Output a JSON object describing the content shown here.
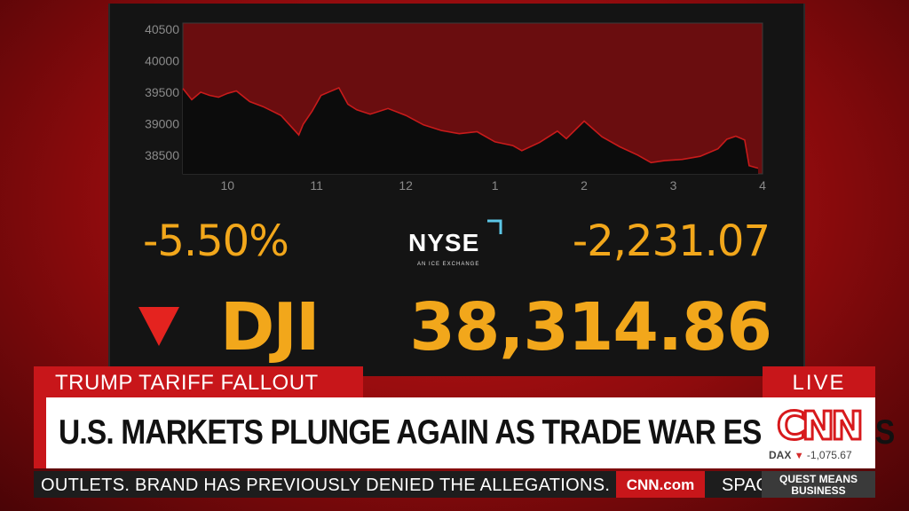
{
  "market": {
    "percent_change": "-5.50%",
    "point_change": "-2,231.07",
    "symbol": "DJI",
    "value": "38,314.86",
    "direction": "down",
    "exchange": {
      "name": "NYSE",
      "tagline": "AN ICE EXCHANGE"
    }
  },
  "chart_data": {
    "type": "area",
    "title": "",
    "xlabel": "",
    "ylabel": "",
    "x_ticks": [
      "10",
      "11",
      "12",
      "1",
      "2",
      "3",
      "4"
    ],
    "y_ticks": [
      38500,
      39000,
      39500,
      40000,
      40500
    ],
    "ylim": [
      38200,
      40600
    ],
    "grid": false,
    "series": [
      {
        "x": [
          9.5,
          9.6,
          9.7,
          9.8,
          9.9,
          10.0,
          10.1,
          10.25,
          10.4,
          10.6,
          10.8,
          10.85,
          10.95,
          11.05,
          11.15,
          11.25,
          11.35,
          11.45,
          11.6,
          11.8,
          12.0,
          12.2,
          12.4,
          12.6,
          12.8,
          13.0,
          13.2,
          13.3,
          13.5,
          13.7,
          13.8,
          14.0,
          14.2,
          14.4,
          14.6,
          14.75,
          14.9,
          15.1,
          15.3,
          15.5,
          15.6,
          15.7,
          15.8,
          15.85,
          15.95
        ],
        "y": [
          39560,
          39380,
          39500,
          39450,
          39420,
          39480,
          39520,
          39350,
          39270,
          39130,
          38820,
          38990,
          39200,
          39450,
          39510,
          39570,
          39310,
          39220,
          39150,
          39240,
          39130,
          38980,
          38890,
          38840,
          38870,
          38710,
          38650,
          38570,
          38700,
          38880,
          38760,
          39040,
          38790,
          38630,
          38500,
          38380,
          38410,
          38430,
          38480,
          38600,
          38750,
          38800,
          38740,
          38330,
          38290
        ]
      }
    ],
    "colors": {
      "area_fill": "#6a0d0f",
      "line": "#c81b1b"
    }
  },
  "lower_third": {
    "topic": "TRUMP TARIFF FALLOUT",
    "live": "LIVE",
    "headline": "U.S. MARKETS PLUNGE AGAIN AS TRADE WAR ESCALATES",
    "logo": "CNN",
    "ticker": {
      "symbol": "DAX",
      "direction": "down",
      "change": "-1,075.67"
    },
    "crawl": "OUTLETS. BRAND HAS PREVIOUSLY DENIED THE ALLEGATIONS.",
    "crawl_url": "CNN.com",
    "crawl_next": "SPAC",
    "show": [
      "QUEST MEANS",
      "BUSINESS"
    ]
  },
  "colors": {
    "accent": "#c8161a",
    "gold": "#f2a71b",
    "background": "#141414"
  }
}
